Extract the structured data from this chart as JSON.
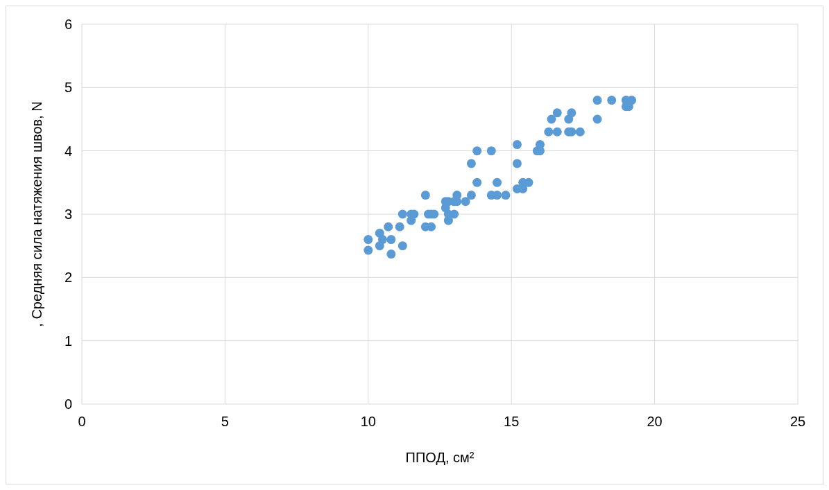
{
  "chart_data": {
    "type": "scatter",
    "xlabel": "ППОД, см²",
    "ylabel": ", Средняя сила натяжения швов, N",
    "xlim": [
      0,
      25
    ],
    "xticks": [
      0,
      5,
      10,
      15,
      20,
      25
    ],
    "ylim": [
      0,
      6
    ],
    "yticks": [
      0,
      1,
      2,
      3,
      4,
      5,
      6
    ],
    "grid": true,
    "marker": "circle",
    "series": [
      {
        "color": "#5b9bd5",
        "x": [
          10,
          10,
          10.4,
          10.4,
          10.5,
          10.7,
          10.8,
          10.8,
          11.1,
          11.2,
          11.2,
          11.5,
          11.5,
          11.6,
          12,
          12,
          12.1,
          12.2,
          12.2,
          12.3,
          12.7,
          12.7,
          12.8,
          12.8,
          12.8,
          13,
          13,
          13.1,
          13.1,
          13.4,
          13.6,
          13.6,
          13.8,
          13.8,
          14.3,
          14.3,
          14.5,
          14.5,
          14.8,
          15.2,
          15.2,
          15.2,
          15.4,
          15.4,
          15.6,
          15.9,
          16,
          16,
          16.3,
          16.4,
          16.6,
          16.6,
          17,
          17,
          17.1,
          17.1,
          17.4,
          18,
          18,
          18.5,
          19,
          19,
          19.1,
          19.2
        ],
        "values": [
          2.6,
          2.43,
          2.7,
          2.5,
          2.6,
          2.8,
          2.6,
          2.37,
          2.8,
          3.0,
          2.5,
          3.0,
          2.9,
          3.0,
          3.3,
          2.8,
          3.0,
          3.0,
          2.8,
          3.0,
          3.2,
          3.1,
          3.2,
          3.0,
          2.9,
          3.2,
          3.0,
          3.3,
          3.2,
          3.2,
          3.8,
          3.3,
          4.0,
          3.5,
          4.0,
          3.3,
          3.5,
          3.3,
          3.3,
          4.1,
          3.8,
          3.4,
          3.5,
          3.4,
          3.5,
          4.0,
          4.1,
          4.0,
          4.3,
          4.5,
          4.6,
          4.3,
          4.5,
          4.3,
          4.6,
          4.3,
          4.3,
          4.8,
          4.5,
          4.8,
          4.8,
          4.7,
          4.7,
          4.8
        ]
      }
    ]
  }
}
